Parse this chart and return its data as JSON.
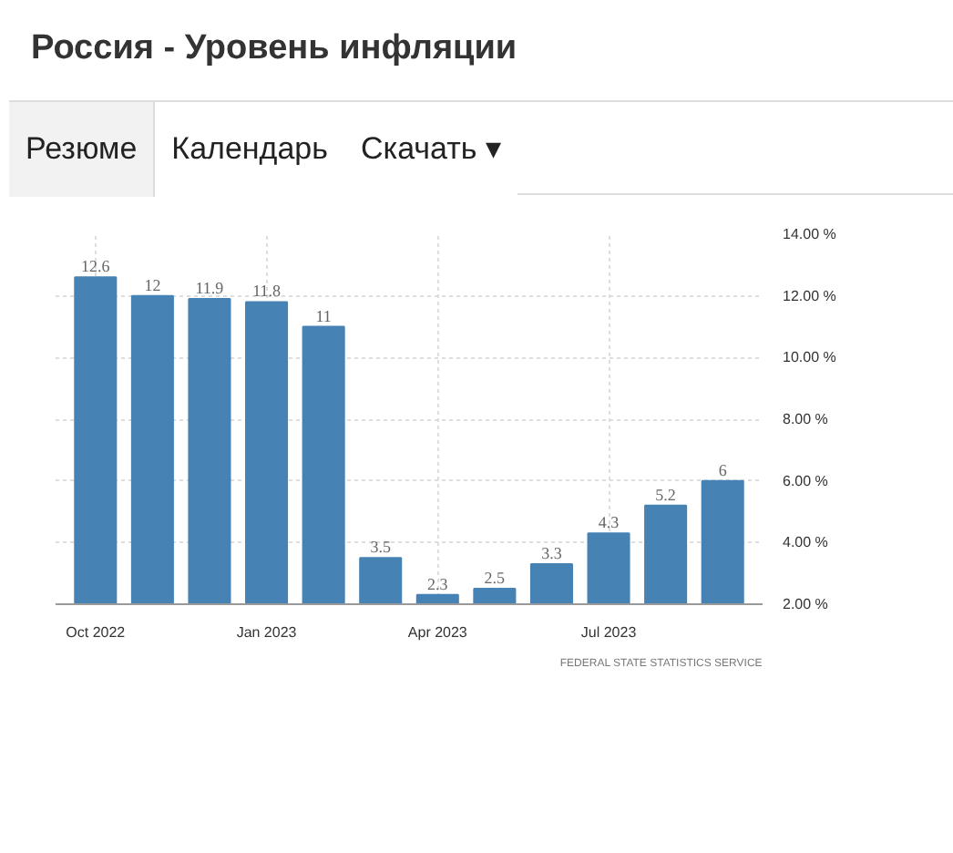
{
  "chart_data": {
    "type": "bar",
    "title": "Россия - Уровень инфляции",
    "categories": [
      "Oct 2022",
      null,
      null,
      "Jan 2023",
      null,
      null,
      "Apr 2023",
      null,
      null,
      "Jul 2023",
      null,
      null
    ],
    "values": [
      12.6,
      12,
      11.9,
      11.8,
      11,
      3.5,
      2.3,
      2.5,
      3.3,
      4.3,
      5.2,
      6
    ],
    "color": "#4682b4",
    "data_labels": true,
    "grid": true,
    "ylim": [
      2,
      14
    ],
    "yticks": [
      {
        "value": 2,
        "label": "2.00 %"
      },
      {
        "value": 4,
        "label": "4.00 %"
      },
      {
        "value": 6,
        "label": "6.00 %"
      },
      {
        "value": 8,
        "label": "8.00 %"
      },
      {
        "value": 10,
        "label": "10.00 %"
      },
      {
        "value": 12,
        "label": "12.00 %"
      },
      {
        "value": 14,
        "label": "14.00 %"
      }
    ],
    "annotations": [
      "Резюме",
      "Календарь",
      "Скачать ▾",
      "FEDERAL STATE STATISTICS SERVICE"
    ]
  }
}
